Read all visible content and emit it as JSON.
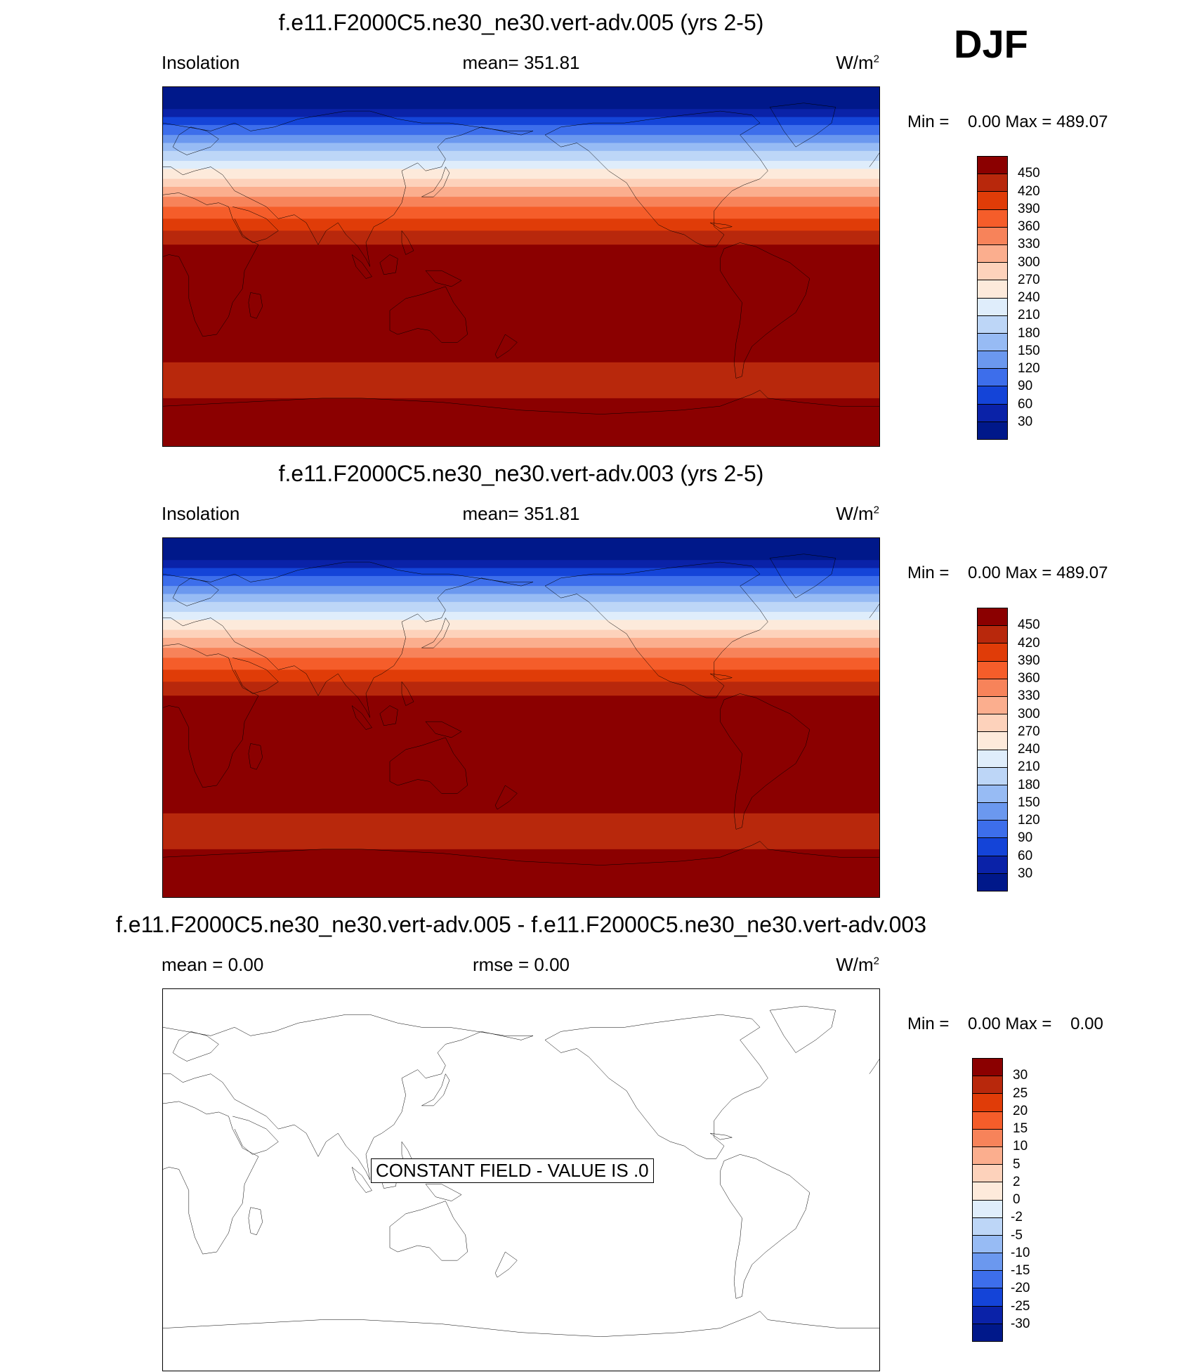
{
  "season": "DJF",
  "field": {
    "colors": [
      "#8b0000",
      "#b8280c",
      "#e03c08",
      "#f55d2a",
      "#f7835a",
      "#fbae8e",
      "#fdd2bb",
      "#fdeadb",
      "#dfedfb",
      "#bdd6f7",
      "#97bbf4",
      "#6b98ef",
      "#3d6eeb",
      "#1444d8",
      "#0a22a8",
      "#00188a"
    ],
    "ticks": [
      "450",
      "420",
      "390",
      "360",
      "330",
      "300",
      "270",
      "240",
      "210",
      "180",
      "150",
      "120",
      "90",
      "60",
      "30"
    ],
    "lat_bands": [
      {
        "lat": 90,
        "value": 0
      },
      {
        "lat": 79,
        "value": 40
      },
      {
        "lat": 75,
        "value": 75
      },
      {
        "lat": 71,
        "value": 105
      },
      {
        "lat": 66,
        "value": 135
      },
      {
        "lat": 62,
        "value": 165
      },
      {
        "lat": 58,
        "value": 195
      },
      {
        "lat": 53,
        "value": 225
      },
      {
        "lat": 49,
        "value": 255
      },
      {
        "lat": 44,
        "value": 285
      },
      {
        "lat": 40,
        "value": 315
      },
      {
        "lat": 35,
        "value": 345
      },
      {
        "lat": 30,
        "value": 375
      },
      {
        "lat": 24,
        "value": 405
      },
      {
        "lat": 18,
        "value": 435
      },
      {
        "lat": 11,
        "value": 465
      },
      {
        "lat": -48,
        "value": 435
      },
      {
        "lat": -66,
        "value": 465
      },
      {
        "lat": -90,
        "value": 465
      }
    ]
  },
  "diff": {
    "colors": [
      "#8b0000",
      "#b8280c",
      "#e03c08",
      "#f55d2a",
      "#f7835a",
      "#fbae8e",
      "#fdd2bb",
      "#fdeadb",
      "#dfedfb",
      "#bdd6f7",
      "#97bbf4",
      "#6b98ef",
      "#3d6eeb",
      "#1444d8",
      "#0a22a8",
      "#00188a"
    ],
    "ticks": [
      "30",
      "25",
      "20",
      "15",
      "10",
      "5",
      "2",
      "0",
      "-2",
      "-5",
      "-10",
      "-15",
      "-20",
      "-25",
      "-30"
    ]
  },
  "panels": [
    {
      "title": "f.e11.F2000C5.ne30_ne30.vert-adv.005 (yrs 2-5)",
      "left_label": "Insolation",
      "center_label": "mean= 351.81",
      "units": "W/m",
      "units_sup": "2",
      "minmax": "Min =    0.00 Max = 489.07"
    },
    {
      "title": "f.e11.F2000C5.ne30_ne30.vert-adv.003 (yrs 2-5)",
      "left_label": "Insolation",
      "center_label": "mean= 351.81",
      "units": "W/m",
      "units_sup": "2",
      "minmax": "Min =    0.00 Max = 489.07"
    },
    {
      "title": "f.e11.F2000C5.ne30_ne30.vert-adv.005 - f.e11.F2000C5.ne30_ne30.vert-adv.003",
      "left_label": "mean =   0.00",
      "center_label": "rmse =   0.00",
      "units": "W/m",
      "units_sup": "2",
      "minmax": "Min =    0.00 Max =    0.00",
      "constant_text": "CONSTANT FIELD - VALUE IS .0"
    }
  ]
}
